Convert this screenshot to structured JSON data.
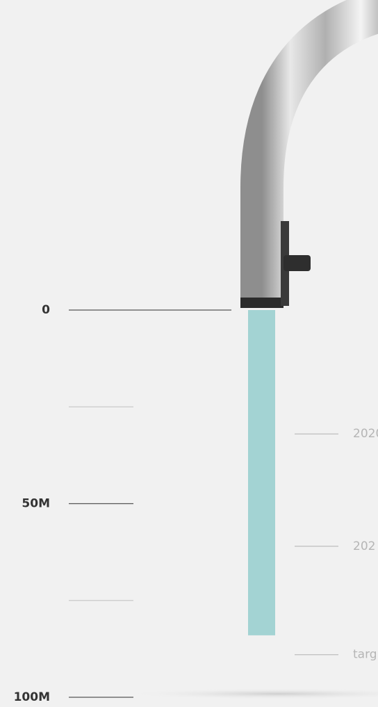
{
  "chart_data": {
    "type": "bar",
    "categories": [
      null
    ],
    "values": [
      84000000
    ],
    "color": "#a3d3d3",
    "ylim": [
      0,
      100000000
    ],
    "yticks": [
      0,
      {
        "value": 50000000,
        "label": "50M"
      },
      {
        "value": 100000000,
        "label": "100M"
      }
    ],
    "minor_yticks": [
      25000000,
      75000000
    ],
    "annotations": [
      {
        "value": 32000000,
        "label": "2020"
      },
      {
        "value": 61000000,
        "label": "202"
      },
      {
        "value": 89000000,
        "label": "targ"
      }
    ]
  }
}
